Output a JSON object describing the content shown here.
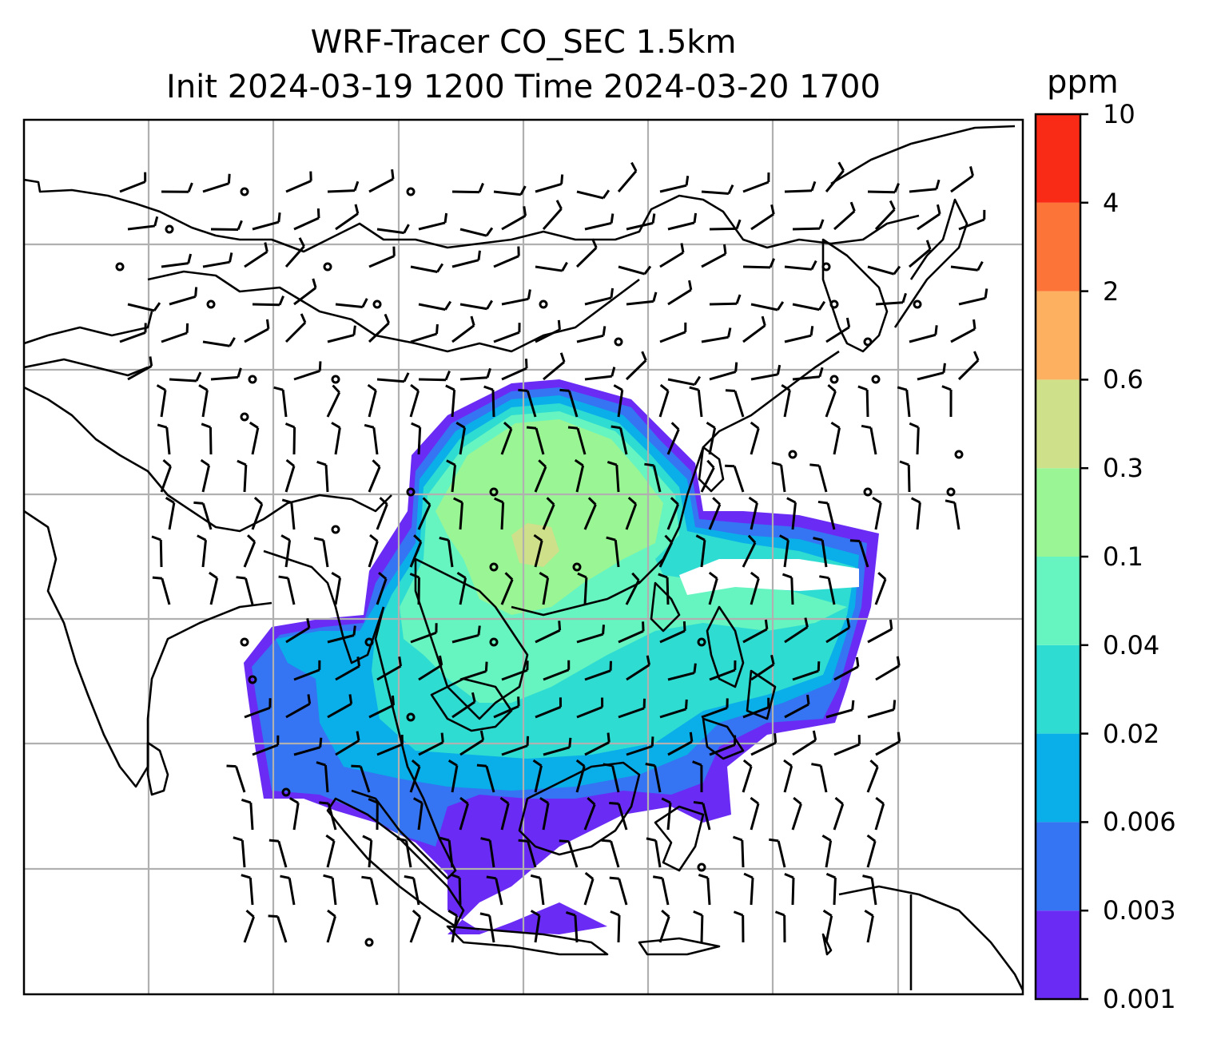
{
  "chart_data": {
    "type": "heatmap",
    "title": "WRF-Tracer CO_SEC 1.5km",
    "subtitle": "Init 2024-03-19 1200 Time 2024-03-20 1700",
    "colorbar": {
      "unit": "ppm",
      "levels": [
        "0.001",
        "0.003",
        "0.006",
        "0.02",
        "0.04",
        "0.1",
        "0.3",
        "0.6",
        "2",
        "4",
        "10"
      ],
      "colors": [
        "#6a2cf5",
        "#3574f2",
        "#0aaee8",
        "#2fdcd2",
        "#66f5c0",
        "#9af595",
        "#cfe08a",
        "#fdb160",
        "#fd7439",
        "#f92b17"
      ]
    },
    "grid": true,
    "map": "coastlines with wind barbs",
    "colors": {
      "grid": "#b0b0b0",
      "coast": "#000000",
      "barb": "#000000"
    }
  }
}
